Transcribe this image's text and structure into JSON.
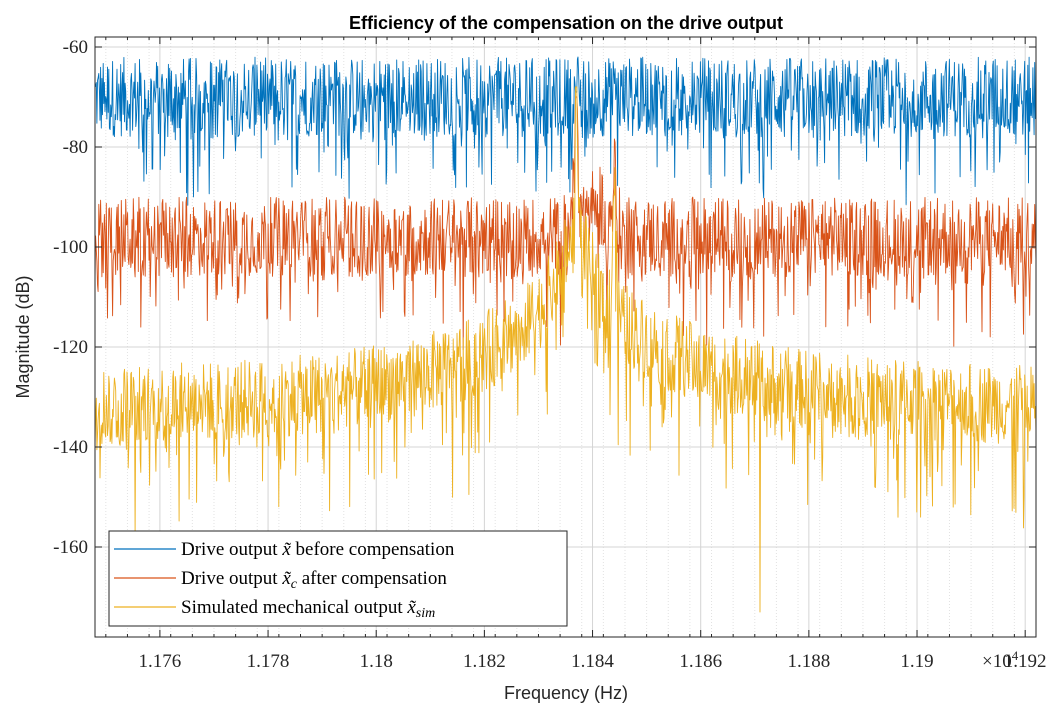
{
  "chart_data": {
    "type": "line",
    "title": "Efficiency of the compensation on the drive output",
    "xlabel": "Frequency (Hz)",
    "ylabel": "Magnitude (dB)",
    "x_multiplier": "×10",
    "x_multiplier_exp": "4",
    "xlim": [
      1.1748,
      1.1922
    ],
    "ylim": [
      -178,
      -58
    ],
    "x_scale_factor": 10000,
    "xticks": [
      1.176,
      1.178,
      1.18,
      1.182,
      1.184,
      1.186,
      1.188,
      1.19,
      1.192
    ],
    "xtick_labels": [
      "1.176",
      "1.178",
      "1.18",
      "1.182",
      "1.184",
      "1.186",
      "1.188",
      "1.19",
      "1.192"
    ],
    "yticks": [
      -60,
      -80,
      -100,
      -120,
      -140,
      -160
    ],
    "ytick_labels": [
      "-60",
      "-80",
      "-100",
      "-120",
      "-140",
      "-160"
    ],
    "grid": true,
    "minor_grid_x": true,
    "legend_position": "bottom-left",
    "series": [
      {
        "name": "Drive output x̃ before compensation",
        "legend": {
          "pre": "Drive output ",
          "sym": "x̃",
          "sub": "",
          "post": " before compensation"
        },
        "color": "#0072BD",
        "shape": "flat",
        "baseline": -70,
        "noise_band": 8,
        "dip_max": 14,
        "peak": {
          "x": 1.1837,
          "y": -69
        }
      },
      {
        "name": "Drive output x̃c after compensation",
        "legend": {
          "pre": "Drive output ",
          "sym": "x̃",
          "sub": "c",
          "post": " after compensation"
        },
        "color": "#D95319",
        "shape": "flat_with_peaks",
        "baseline": -98,
        "noise_band": 8,
        "dip_max": 16,
        "peaks": [
          {
            "x": 1.1837,
            "y": -70
          },
          {
            "x": 1.1844,
            "y": -84
          }
        ]
      },
      {
        "name": "Simulated mechanical output x̃sim",
        "legend": {
          "pre": "Simulated mechanical output ",
          "sym": "x̃",
          "sub": "sim",
          "post": ""
        },
        "color": "#EDB120",
        "shape": "resonance",
        "baseline_edges": -132,
        "noise_band": 8,
        "dip_max": 20,
        "peak": {
          "x": 1.1837,
          "y": -68
        },
        "side_peak": {
          "x": 1.1844,
          "y": -86
        },
        "notch": {
          "x": 1.18405,
          "y": -97
        },
        "spike_down": {
          "x": 1.1871,
          "y": -173
        }
      }
    ]
  }
}
